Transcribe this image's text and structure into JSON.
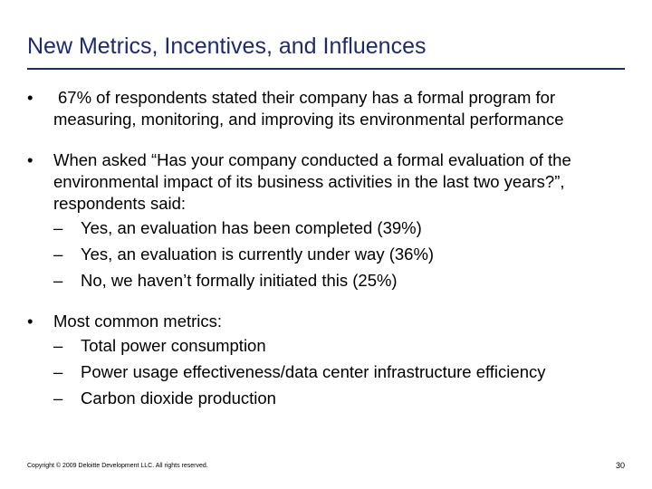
{
  "slide": {
    "title": "New Metrics, Incentives, and Influences",
    "bullets": [
      {
        "marker": "•",
        "text": "67% of respondents stated their company has a formal program for measuring, monitoring, and improving its environmental performance",
        "subitems": []
      },
      {
        "marker": "•",
        "text": "When asked “Has your company conducted a formal evaluation of the environmental impact of its business activities in the last two years?”, respondents said:",
        "subitems": [
          {
            "marker": "–",
            "text": "Yes, an evaluation has been completed (39%)"
          },
          {
            "marker": "–",
            "text": "Yes, an evaluation is currently under way (36%)"
          },
          {
            "marker": "–",
            "text": "No, we haven’t formally initiated this (25%)"
          }
        ]
      },
      {
        "marker": "•",
        "text": "Most common metrics:",
        "subitems": [
          {
            "marker": "–",
            "text": "Total power consumption"
          },
          {
            "marker": "–",
            "text": "Power usage effectiveness/data center infrastructure efficiency"
          },
          {
            "marker": "–",
            "text": "Carbon dioxide production"
          }
        ]
      }
    ],
    "footer": "Copyright © 2009 Deloitte Development LLC. All rights reserved.",
    "page_number": "30",
    "colors": {
      "title": "#1f2a6b",
      "rule": "#1f2a6b",
      "text": "#000000"
    }
  }
}
